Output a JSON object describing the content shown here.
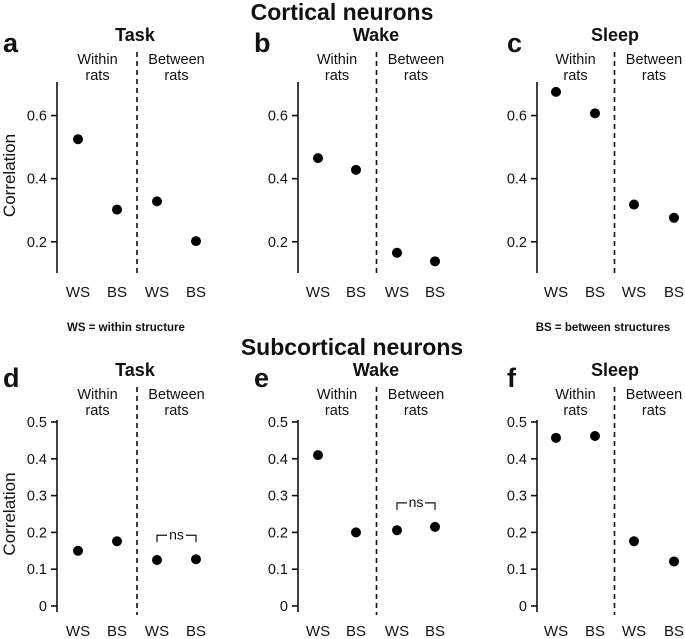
{
  "headings": {
    "cortical": "Cortical neurons",
    "subcortical": "Subcortical neurons"
  },
  "notes": {
    "ws": "WS = within structure",
    "bs": "BS = between structures"
  },
  "colors": {
    "points": "#000000",
    "axes": "#111111"
  },
  "chart_data": [
    {
      "id": "a",
      "letter": "a",
      "title": "Task",
      "type": "scatter",
      "groups": [
        "Within\nrats",
        "Between\nrats"
      ],
      "categories": [
        "WS",
        "BS",
        "WS",
        "BS"
      ],
      "values": [
        0.525,
        0.302,
        0.328,
        0.202
      ],
      "ylabel": "Correlation",
      "yticks": [
        0.2,
        0.4,
        0.6
      ],
      "ylim": [
        0.12,
        0.7
      ],
      "annotation": ""
    },
    {
      "id": "b",
      "letter": "b",
      "title": "Wake",
      "type": "scatter",
      "groups": [
        "Within\nrats",
        "Between\nrats"
      ],
      "categories": [
        "WS",
        "BS",
        "WS",
        "BS"
      ],
      "values": [
        0.465,
        0.428,
        0.165,
        0.138
      ],
      "ylabel": "",
      "yticks": [
        0.2,
        0.4,
        0.6
      ],
      "ylim": [
        0.12,
        0.7
      ],
      "annotation": ""
    },
    {
      "id": "c",
      "letter": "c",
      "title": "Sleep",
      "type": "scatter",
      "groups": [
        "Within\nrats",
        "Between\nrats"
      ],
      "categories": [
        "WS",
        "BS",
        "WS",
        "BS"
      ],
      "values": [
        0.675,
        0.607,
        0.318,
        0.276
      ],
      "ylabel": "",
      "yticks": [
        0.2,
        0.4,
        0.6
      ],
      "ylim": [
        0.12,
        0.7
      ],
      "annotation": ""
    },
    {
      "id": "d",
      "letter": "d",
      "title": "Task",
      "type": "scatter",
      "groups": [
        "Within\nrats",
        "Between\nrats"
      ],
      "categories": [
        "WS",
        "BS",
        "WS",
        "BS"
      ],
      "values": [
        0.15,
        0.176,
        0.125,
        0.127
      ],
      "ylabel": "Correlation",
      "yticks": [
        0,
        0.1,
        0.2,
        0.3,
        0.4,
        0.5
      ],
      "ylim": [
        0,
        0.5
      ],
      "annotation": "ns"
    },
    {
      "id": "e",
      "letter": "e",
      "title": "Wake",
      "type": "scatter",
      "groups": [
        "Within\nrats",
        "Between\nrats"
      ],
      "categories": [
        "WS",
        "BS",
        "WS",
        "BS"
      ],
      "values": [
        0.41,
        0.2,
        0.206,
        0.215
      ],
      "ylabel": "",
      "yticks": [
        0,
        0.1,
        0.2,
        0.3,
        0.4,
        0.5
      ],
      "ylim": [
        0,
        0.5
      ],
      "annotation": "ns"
    },
    {
      "id": "f",
      "letter": "f",
      "title": "Sleep",
      "type": "scatter",
      "groups": [
        "Within\nrats",
        "Between\nrats"
      ],
      "categories": [
        "WS",
        "BS",
        "WS",
        "BS"
      ],
      "values": [
        0.457,
        0.462,
        0.176,
        0.121
      ],
      "ylabel": "",
      "yticks": [
        0,
        0.1,
        0.2,
        0.3,
        0.4,
        0.5
      ],
      "ylim": [
        0,
        0.5
      ],
      "annotation": ""
    }
  ]
}
